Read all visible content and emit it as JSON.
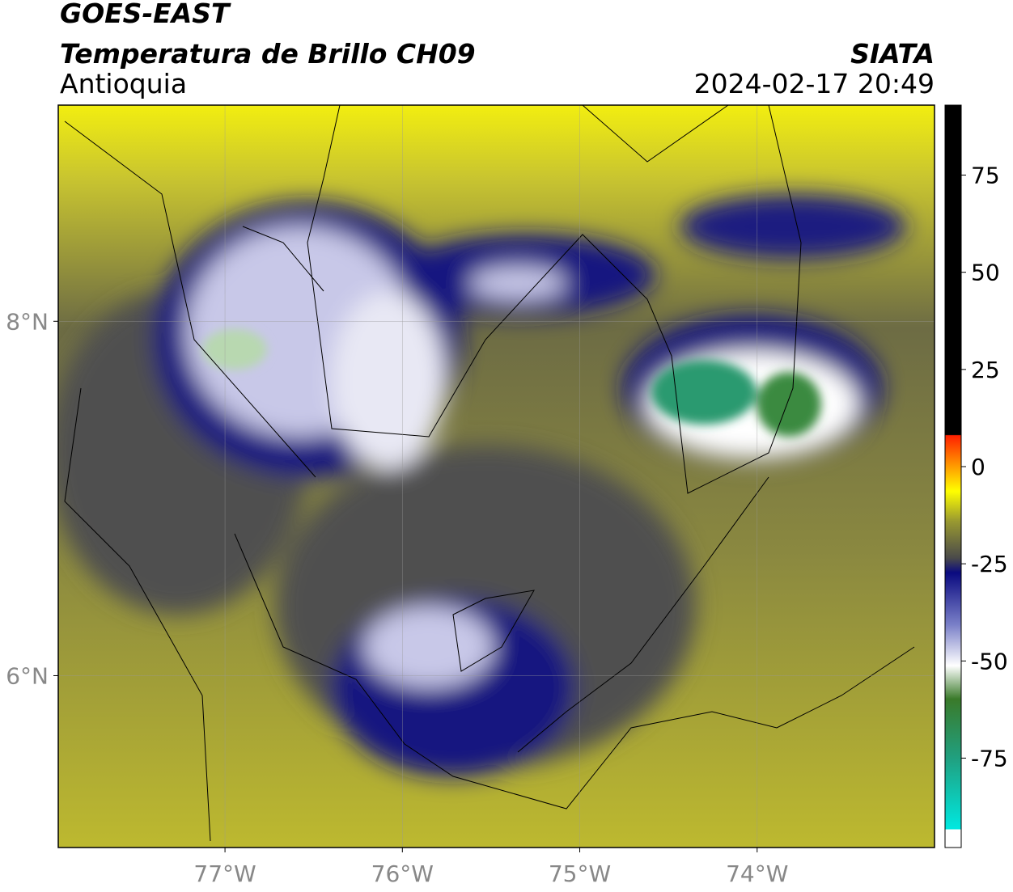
{
  "header": {
    "satellite": "GOES-EAST",
    "product": "Temperatura de Brillo CH09",
    "region": "Antioquia",
    "source": "SIATA",
    "datetime": "2024-02-17 20:49"
  },
  "map": {
    "xlim": [
      -77.94,
      -73
    ],
    "ylim": [
      5.03,
      9.22
    ],
    "xticks": [
      {
        "value": -77,
        "label": "77°W"
      },
      {
        "value": -76,
        "label": "76°W"
      },
      {
        "value": -75,
        "label": "75°W"
      },
      {
        "value": -74,
        "label": "74°W"
      }
    ],
    "yticks": [
      {
        "value": 6,
        "label": "6°N"
      },
      {
        "value": 8,
        "label": "8°N"
      }
    ]
  },
  "colorbar": {
    "lim": [
      -98,
      93
    ],
    "ticks": [
      -75,
      -50,
      -25,
      0,
      25,
      50,
      75
    ]
  }
}
